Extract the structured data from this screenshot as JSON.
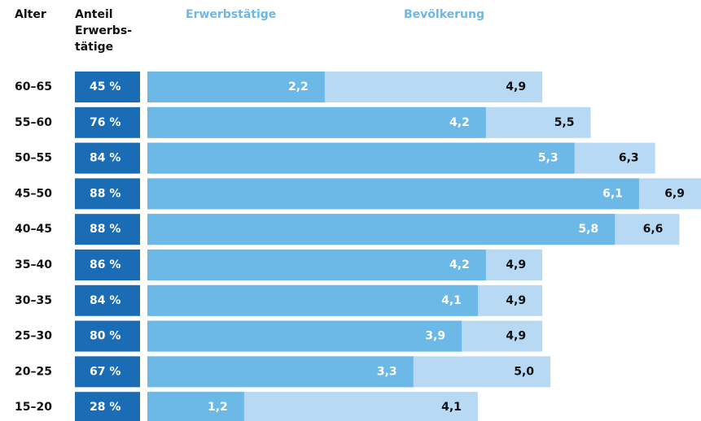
{
  "chart_data": {
    "type": "bar",
    "category_label": "Alter",
    "share_label": [
      "Anteil",
      "Erwerbs-",
      "tätige"
    ],
    "categories": [
      "60–65",
      "55–60",
      "50–55",
      "45–50",
      "40–45",
      "35–40",
      "30–35",
      "25–30",
      "20–25",
      "15–20"
    ],
    "share": {
      "color": "#1a6db5",
      "values": [
        45,
        76,
        84,
        88,
        88,
        86,
        84,
        80,
        67,
        28
      ],
      "value_labels": [
        "45 %",
        "76 %",
        "84 %",
        "88 %",
        "88 %",
        "86 %",
        "84 %",
        "80 %",
        "67 %",
        "28 %"
      ]
    },
    "series": [
      {
        "name": "Erwerbstätige",
        "color": "#6cb8e6",
        "values": [
          2.2,
          4.2,
          5.3,
          6.1,
          5.8,
          4.2,
          4.1,
          3.9,
          3.3,
          1.2
        ],
        "value_labels": [
          "2,2",
          "4,2",
          "5,3",
          "6,1",
          "5,8",
          "4,2",
          "4,1",
          "3,9",
          "3,3",
          "1,2"
        ]
      },
      {
        "name": "Bevölkerung",
        "color": "#b7d9f3",
        "values": [
          4.9,
          5.5,
          6.3,
          6.9,
          6.6,
          4.9,
          4.9,
          4.9,
          5.0,
          4.1
        ],
        "value_labels": [
          "4,9",
          "5,5",
          "6,3",
          "6,9",
          "6,6",
          "4,9",
          "4,9",
          "4,9",
          "5,0",
          "4,1"
        ]
      }
    ]
  }
}
